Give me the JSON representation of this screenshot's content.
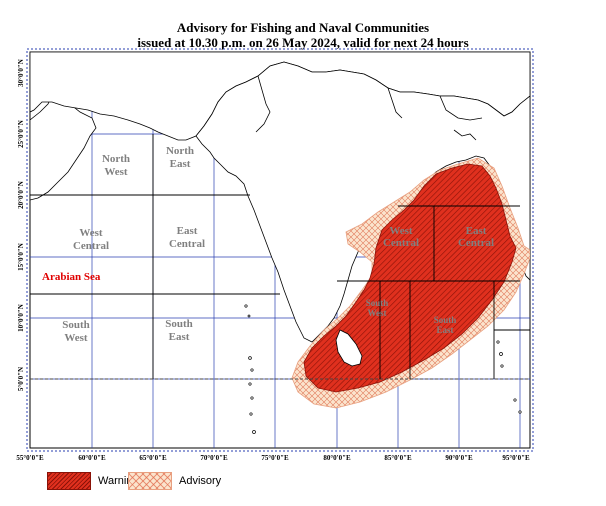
{
  "title_line1": "Advisory for Fishing and Naval Communities",
  "title_line2": "issued at 10.30 p.m.  on 26 May 2024, valid for next 24 hours",
  "x_axis": {
    "ticks": [
      "55°0'0\"E",
      "60°0'0\"E",
      "65°0'0\"E",
      "70°0'0\"E",
      "75°0'0\"E",
      "80°0'0\"E",
      "85°0'0\"E",
      "90°0'0\"E",
      "95°0'0\"E"
    ]
  },
  "y_axis": {
    "ticks": [
      "30°0'0\"N",
      "25°0'0\"N",
      "20°0'0\"N",
      "15°0'0\"N",
      "10°0'0\"N",
      "5°0'0\"N"
    ]
  },
  "regions": {
    "north_west": [
      "North",
      "West"
    ],
    "north_east": [
      "North",
      "East"
    ],
    "west_central": [
      "West",
      "Central"
    ],
    "east_central": [
      "East",
      "Central"
    ],
    "south_west": [
      "South",
      "West"
    ],
    "south_east": [
      "South",
      "East"
    ],
    "bay_west_central": [
      "West",
      "Central"
    ],
    "bay_east_central": [
      "East",
      "Central"
    ],
    "bay_south_west": [
      "South",
      "West"
    ],
    "bay_south_east": [
      "South",
      "East"
    ]
  },
  "sea_label": "Arabian Sea",
  "legend": {
    "warning": "Warning",
    "advisory": "Advisory"
  },
  "colors": {
    "warning_fill": "#e0301e",
    "warning_hatch": "#8a1208",
    "advisory_fill": "#fbe4cd",
    "advisory_hatch": "#e07a5a",
    "grid_blue": "#2a3fb0",
    "sea_label": "#e00000",
    "region_label": "#808080"
  }
}
